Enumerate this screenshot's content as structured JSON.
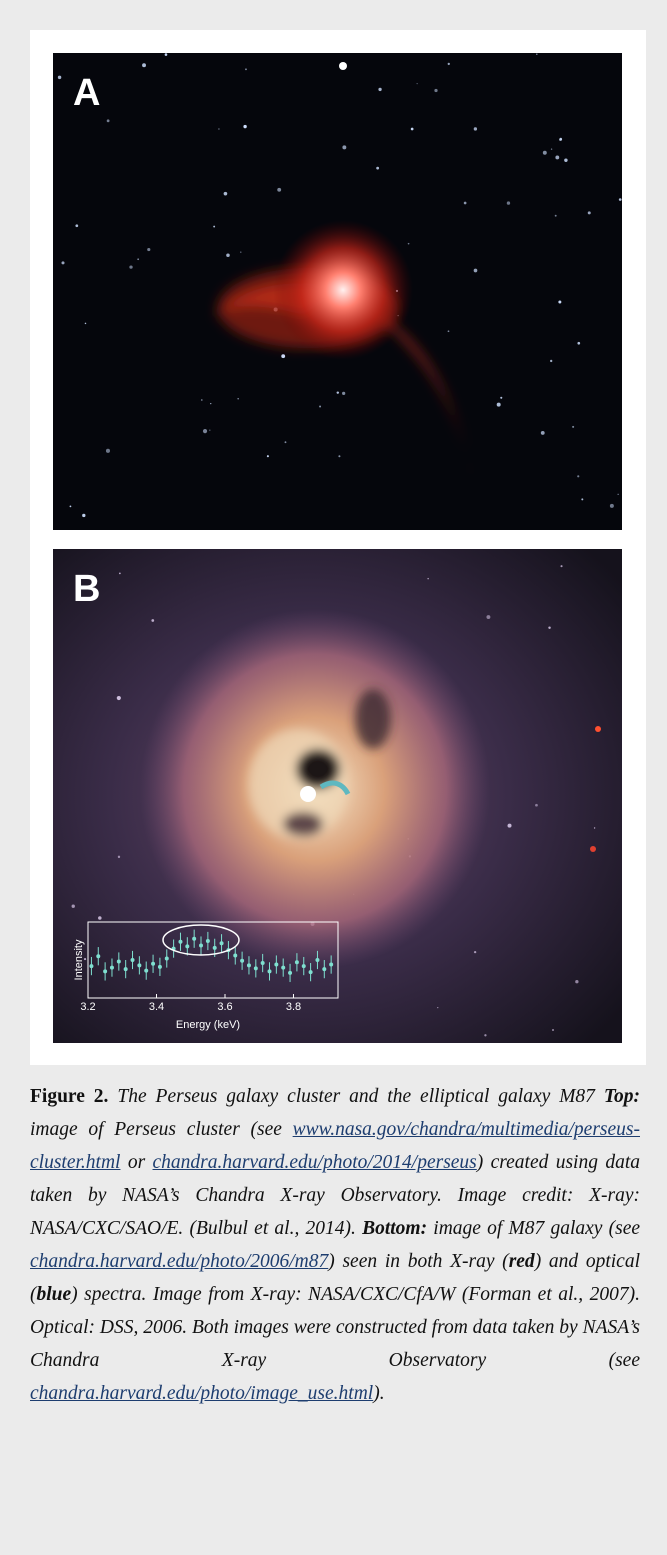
{
  "panels": {
    "a": "A",
    "b": "B"
  },
  "chart_data": {
    "type": "errorbar",
    "xlabel": "Energy (keV)",
    "ylabel": "Intensity",
    "xlim": [
      3.2,
      3.93
    ],
    "xticks": [
      3.2,
      3.4,
      3.6,
      3.8
    ],
    "ylim": [
      0,
      10
    ],
    "color": "#7fe0d0",
    "error": 1.2,
    "x": [
      3.21,
      3.23,
      3.25,
      3.27,
      3.29,
      3.31,
      3.33,
      3.35,
      3.37,
      3.39,
      3.41,
      3.43,
      3.45,
      3.47,
      3.49,
      3.51,
      3.53,
      3.55,
      3.57,
      3.59,
      3.61,
      3.63,
      3.65,
      3.67,
      3.69,
      3.71,
      3.73,
      3.75,
      3.77,
      3.79,
      3.81,
      3.83,
      3.85,
      3.87,
      3.89,
      3.91
    ],
    "values": [
      4.2,
      5.5,
      3.5,
      4.0,
      4.8,
      3.8,
      5.0,
      4.3,
      3.6,
      4.5,
      4.1,
      5.2,
      6.5,
      7.4,
      6.8,
      7.8,
      6.9,
      7.5,
      6.6,
      7.2,
      6.3,
      5.6,
      4.9,
      4.3,
      3.9,
      4.6,
      3.5,
      4.4,
      4.0,
      3.3,
      4.7,
      4.2,
      3.4,
      5.0,
      3.8,
      4.4
    ]
  },
  "caption": {
    "parts": [
      "Figure 2.",
      " The Perseus galaxy cluster and the elliptical galaxy M87 ",
      "Top:",
      " image of Perseus cluster (see ",
      "www.nasa.gov/chandra/multimedia/perseus-cluster.html",
      " or ",
      "chandra.harvard.edu/photo/2014/perseus",
      ") created using data taken by NASA’s Chandra X-ray Observatory. Image credit: X-ray: NASA/CXC/SAO/E. (Bulbul et al., 2014). ",
      "Bottom:",
      " image of M87 galaxy (see ",
      "chandra.harvard.edu/photo/2006/m87",
      ") seen in both X-ray (",
      "red",
      ") and optical (",
      "blue",
      ") spectra. Image from X-ray: NASA/CXC/CfA/W (Forman et al., 2007). Optical: DSS, 2006. Both images were constructed from data taken by NASA’s Chandra X-ray Observatory (see ",
      "chandra.harvard.edu/photo/image_use.html",
      ")."
    ]
  }
}
